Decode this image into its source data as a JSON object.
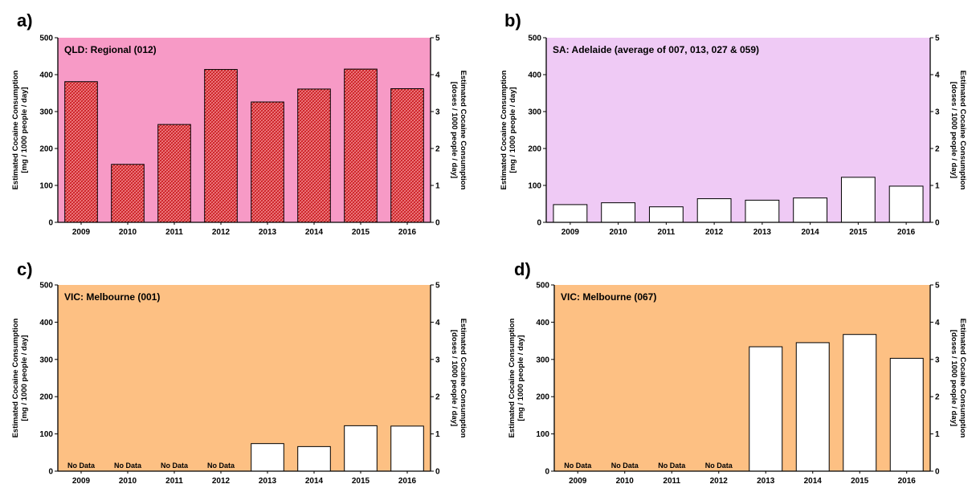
{
  "chart_data": [
    {
      "panel_label": "a)",
      "type": "bar",
      "title": "QLD: Regional (012)",
      "categories": [
        "2009",
        "2010",
        "2011",
        "2012",
        "2013",
        "2014",
        "2015",
        "2016"
      ],
      "values": [
        381,
        157,
        265,
        414,
        326,
        361,
        415,
        362
      ],
      "no_data_label": "No Data",
      "ylabel": "Estimated Cocaine Consumption\n[mg / 1000 people / day]",
      "ylabel_right": "Estimated Cocaine Consumption\n[doses / 1000 people / day]",
      "ylim": [
        0,
        500
      ],
      "ylim_right": [
        0,
        5
      ],
      "yticks": [
        0,
        100,
        200,
        300,
        400,
        500
      ],
      "yticks_right": [
        0,
        1,
        2,
        3,
        4,
        5
      ],
      "background_color": "#f79ac6",
      "bar_color": "#e8262a",
      "bar_pattern": "hatched"
    },
    {
      "panel_label": "b)",
      "type": "bar",
      "title": "SA: Adelaide (average of 007, 013, 027 & 059)",
      "categories": [
        "2009",
        "2010",
        "2011",
        "2012",
        "2013",
        "2014",
        "2015",
        "2016"
      ],
      "values": [
        48,
        53,
        42,
        64,
        60,
        66,
        122,
        98
      ],
      "no_data_label": "No Data",
      "ylabel": "Estimated Cocaine Consumption\n[mg / 1000 people / day]",
      "ylabel_right": "Estimated Cocaine Consumption\n[doses / 1000 people / day]",
      "ylim": [
        0,
        500
      ],
      "ylim_right": [
        0,
        5
      ],
      "yticks": [
        0,
        100,
        200,
        300,
        400,
        500
      ],
      "yticks_right": [
        0,
        1,
        2,
        3,
        4,
        5
      ],
      "background_color": "#efcaf5",
      "bar_color": "#ffffff",
      "bar_pattern": "solid"
    },
    {
      "panel_label": "c)",
      "type": "bar",
      "title": "VIC: Melbourne (001)",
      "categories": [
        "2009",
        "2010",
        "2011",
        "2012",
        "2013",
        "2014",
        "2015",
        "2016"
      ],
      "values": [
        null,
        null,
        null,
        null,
        74,
        66,
        122,
        121
      ],
      "no_data_label": "No Data",
      "ylabel": "Estimated Cocaine Consumption\n[mg / 1000 people / day]",
      "ylabel_right": "Estimated Cocaine Consumption\n[doses / 1000 people / day]",
      "ylim": [
        0,
        500
      ],
      "ylim_right": [
        0,
        5
      ],
      "yticks": [
        0,
        100,
        200,
        300,
        400,
        500
      ],
      "yticks_right": [
        0,
        1,
        2,
        3,
        4,
        5
      ],
      "background_color": "#fdc083",
      "bar_color": "#ffffff",
      "bar_pattern": "solid"
    },
    {
      "panel_label": "d)",
      "type": "bar",
      "title": "VIC: Melbourne (067)",
      "categories": [
        "2009",
        "2010",
        "2011",
        "2012",
        "2013",
        "2014",
        "2015",
        "2016"
      ],
      "values": [
        null,
        null,
        null,
        null,
        334,
        345,
        367,
        303
      ],
      "no_data_label": "No Data",
      "ylabel": "Estimated Cocaine Consumption\n[mg / 1000 people / day]",
      "ylabel_right": "Estimated Cocaine Consumption\n[doses / 1000 people / day]",
      "ylim": [
        0,
        500
      ],
      "ylim_right": [
        0,
        5
      ],
      "yticks": [
        0,
        100,
        200,
        300,
        400,
        500
      ],
      "yticks_right": [
        0,
        1,
        2,
        3,
        4,
        5
      ],
      "background_color": "#fdc083",
      "bar_color": "#ffffff",
      "bar_pattern": "solid"
    }
  ]
}
